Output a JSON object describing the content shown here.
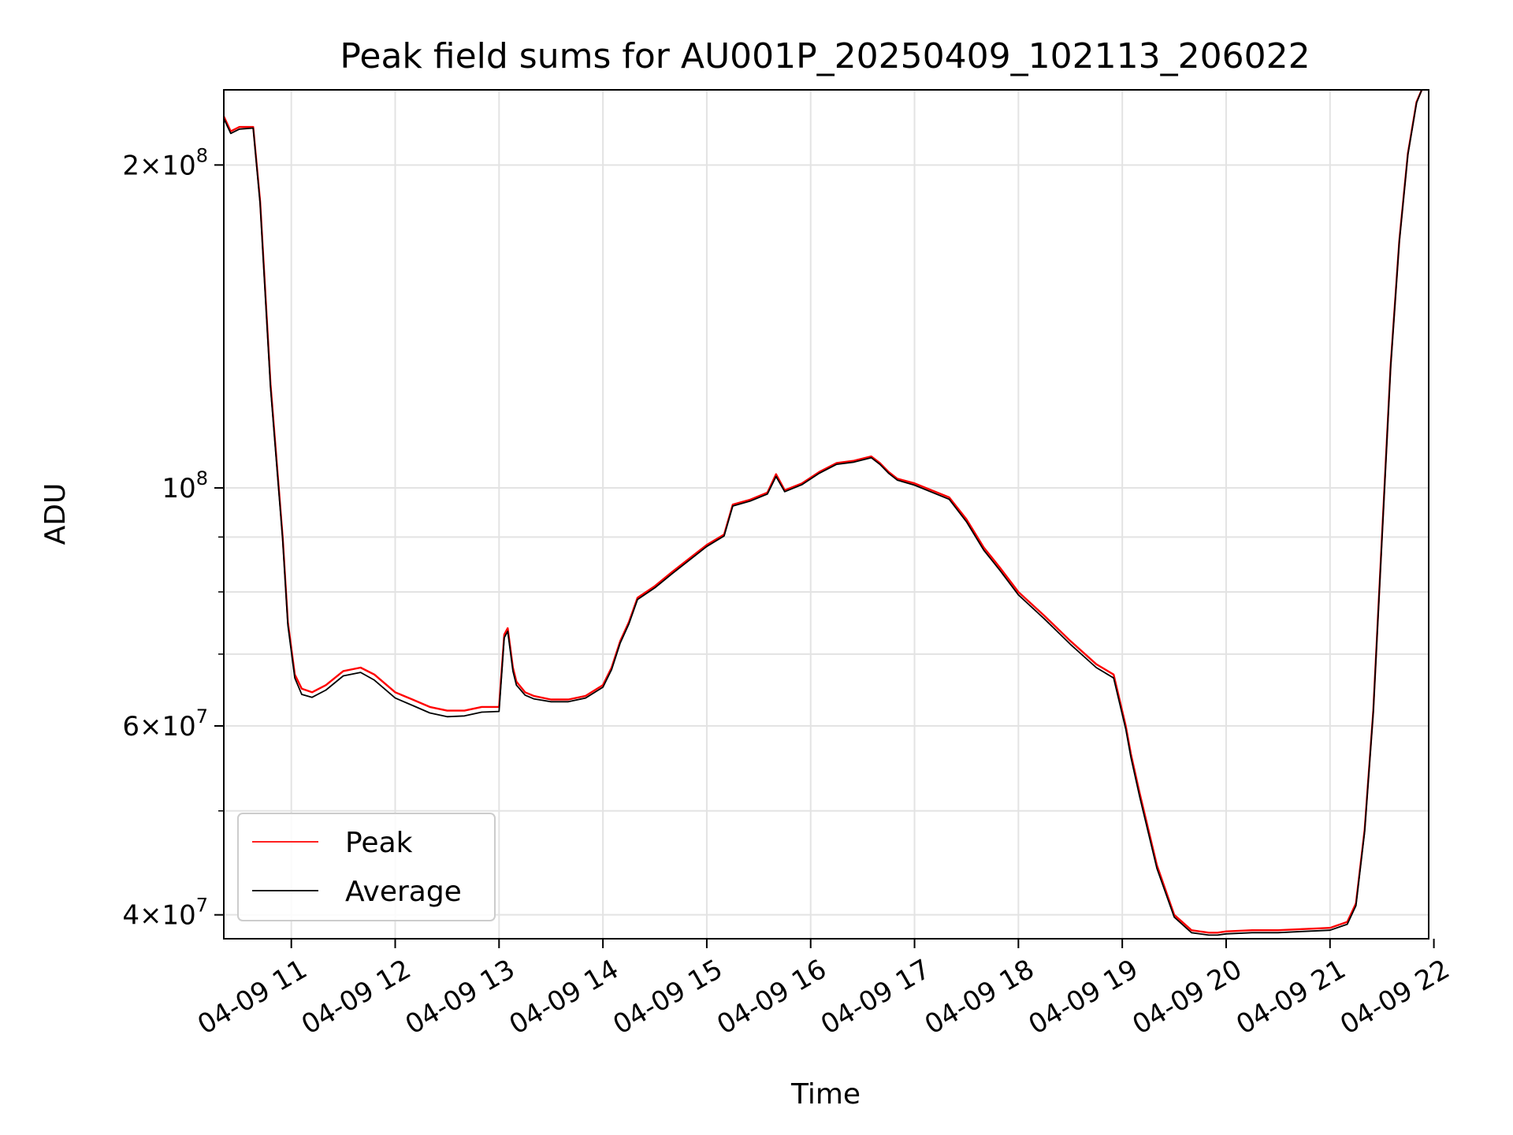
{
  "chart_data": {
    "type": "line",
    "title": "Peak field sums for AU001P_20250409_102113_206022",
    "xlabel": "Time",
    "ylabel": "ADU",
    "y_scale": "log",
    "grid": true,
    "legend_position": "lower-left",
    "xlim": [
      "04-09 10:21",
      "04-09 21:57"
    ],
    "ylim": [
      38000000,
      235000000
    ],
    "x_ticks": [
      "04-09 11",
      "04-09 12",
      "04-09 13",
      "04-09 14",
      "04-09 15",
      "04-09 16",
      "04-09 17",
      "04-09 18",
      "04-09 19",
      "04-09 20",
      "04-09 21",
      "04-09 22"
    ],
    "y_major_ticks": [
      {
        "value": 40000000,
        "mantissa": "4",
        "exponent": "7"
      },
      {
        "value": 60000000,
        "mantissa": "6",
        "exponent": "7"
      },
      {
        "value": 100000000,
        "mantissa": "",
        "exponent": "8"
      },
      {
        "value": 200000000,
        "mantissa": "2",
        "exponent": "8"
      }
    ],
    "y_minor_ticks": [
      50000000,
      70000000,
      80000000,
      90000000
    ],
    "series": [
      {
        "name": "Peak",
        "color": "#ff0000",
        "x": [
          "04-09 10:21",
          "04-09 10:25",
          "04-09 10:30",
          "04-09 10:38",
          "04-09 10:42",
          "04-09 10:48",
          "04-09 10:55",
          "04-09 10:58",
          "04-09 11:02",
          "04-09 11:06",
          "04-09 11:12",
          "04-09 11:20",
          "04-09 11:30",
          "04-09 11:40",
          "04-09 11:48",
          "04-09 12:00",
          "04-09 12:10",
          "04-09 12:20",
          "04-09 12:30",
          "04-09 12:40",
          "04-09 12:50",
          "04-09 13:00",
          "04-09 13:03",
          "04-09 13:05",
          "04-09 13:08",
          "04-09 13:10",
          "04-09 13:15",
          "04-09 13:20",
          "04-09 13:30",
          "04-09 13:40",
          "04-09 13:50",
          "04-09 14:00",
          "04-09 14:05",
          "04-09 14:10",
          "04-09 14:15",
          "04-09 14:20",
          "04-09 14:30",
          "04-09 14:40",
          "04-09 15:00",
          "04-09 15:10",
          "04-09 15:15",
          "04-09 15:25",
          "04-09 15:35",
          "04-09 15:40",
          "04-09 15:45",
          "04-09 15:55",
          "04-09 16:05",
          "04-09 16:15",
          "04-09 16:25",
          "04-09 16:35",
          "04-09 16:40",
          "04-09 16:45",
          "04-09 16:50",
          "04-09 17:00",
          "04-09 17:20",
          "04-09 17:30",
          "04-09 17:40",
          "04-09 17:45",
          "04-09 17:50",
          "04-09 18:00",
          "04-09 18:15",
          "04-09 18:30",
          "04-09 18:45",
          "04-09 18:55",
          "04-09 19:02",
          "04-09 19:05",
          "04-09 19:10",
          "04-09 19:20",
          "04-09 19:30",
          "04-09 19:40",
          "04-09 19:50",
          "04-09 19:55",
          "04-09 20:00",
          "04-09 20:15",
          "04-09 20:30",
          "04-09 20:45",
          "04-09 21:00",
          "04-09 21:10",
          "04-09 21:15",
          "04-09 21:20",
          "04-09 21:25",
          "04-09 21:30",
          "04-09 21:35",
          "04-09 21:40",
          "04-09 21:45",
          "04-09 21:50",
          "04-09 21:53"
        ],
        "y": [
          222000000,
          215000000,
          217000000,
          217000000,
          185000000,
          125000000,
          90000000,
          75000000,
          67000000,
          65000000,
          64500000,
          65500000,
          67500000,
          68000000,
          67000000,
          64500000,
          63500000,
          62500000,
          62000000,
          62000000,
          62500000,
          62500000,
          73000000,
          74000000,
          68000000,
          66000000,
          64500000,
          64000000,
          63500000,
          63500000,
          64000000,
          65500000,
          68000000,
          72000000,
          75000000,
          79000000,
          81000000,
          83500000,
          88500000,
          90500000,
          96500000,
          97500000,
          99000000,
          103000000,
          99500000,
          101000000,
          103500000,
          105500000,
          106000000,
          107000000,
          105500000,
          103500000,
          102000000,
          101000000,
          98000000,
          93500000,
          88000000,
          86000000,
          84000000,
          80000000,
          76000000,
          72000000,
          68500000,
          67000000,
          60000000,
          56500000,
          52000000,
          44500000,
          40000000,
          38700000,
          38500000,
          38500000,
          38600000,
          38700000,
          38700000,
          38800000,
          38900000,
          39400000,
          41000000,
          48000000,
          62000000,
          90000000,
          130000000,
          170000000,
          205000000,
          229000000,
          235000000
        ]
      },
      {
        "name": "Average",
        "color": "#000000",
        "x": [
          "04-09 10:21",
          "04-09 10:25",
          "04-09 10:30",
          "04-09 10:38",
          "04-09 10:42",
          "04-09 10:48",
          "04-09 10:55",
          "04-09 10:58",
          "04-09 11:02",
          "04-09 11:06",
          "04-09 11:12",
          "04-09 11:20",
          "04-09 11:30",
          "04-09 11:40",
          "04-09 11:48",
          "04-09 12:00",
          "04-09 12:10",
          "04-09 12:20",
          "04-09 12:30",
          "04-09 12:40",
          "04-09 12:50",
          "04-09 13:00",
          "04-09 13:03",
          "04-09 13:05",
          "04-09 13:08",
          "04-09 13:10",
          "04-09 13:15",
          "04-09 13:20",
          "04-09 13:30",
          "04-09 13:40",
          "04-09 13:50",
          "04-09 14:00",
          "04-09 14:05",
          "04-09 14:10",
          "04-09 14:15",
          "04-09 14:20",
          "04-09 14:30",
          "04-09 14:40",
          "04-09 15:00",
          "04-09 15:10",
          "04-09 15:15",
          "04-09 15:25",
          "04-09 15:35",
          "04-09 15:40",
          "04-09 15:45",
          "04-09 15:55",
          "04-09 16:05",
          "04-09 16:15",
          "04-09 16:25",
          "04-09 16:35",
          "04-09 16:40",
          "04-09 16:45",
          "04-09 16:50",
          "04-09 17:00",
          "04-09 17:20",
          "04-09 17:30",
          "04-09 17:40",
          "04-09 17:45",
          "04-09 17:50",
          "04-09 18:00",
          "04-09 18:15",
          "04-09 18:30",
          "04-09 18:45",
          "04-09 18:55",
          "04-09 19:02",
          "04-09 19:05",
          "04-09 19:10",
          "04-09 19:20",
          "04-09 19:30",
          "04-09 19:40",
          "04-09 19:50",
          "04-09 19:55",
          "04-09 20:00",
          "04-09 20:15",
          "04-09 20:30",
          "04-09 20:45",
          "04-09 21:00",
          "04-09 21:10",
          "04-09 21:15",
          "04-09 21:20",
          "04-09 21:25",
          "04-09 21:30",
          "04-09 21:35",
          "04-09 21:40",
          "04-09 21:45",
          "04-09 21:50",
          "04-09 21:53"
        ],
        "y": [
          221000000,
          214000000,
          216000000,
          216500000,
          184000000,
          124000000,
          89500000,
          74500000,
          66500000,
          64200000,
          63800000,
          64800000,
          66800000,
          67300000,
          66200000,
          63700000,
          62700000,
          61700000,
          61200000,
          61300000,
          61800000,
          61900000,
          72500000,
          73500000,
          67500000,
          65500000,
          64100000,
          63600000,
          63200000,
          63200000,
          63700000,
          65200000,
          67700000,
          71700000,
          74700000,
          78700000,
          80700000,
          83200000,
          88200000,
          90200000,
          96200000,
          97200000,
          98700000,
          102500000,
          99200000,
          100700000,
          103200000,
          105200000,
          105700000,
          106700000,
          105200000,
          103200000,
          101700000,
          100600000,
          97600000,
          93000000,
          87500000,
          85500000,
          83500000,
          79500000,
          75500000,
          71500000,
          68000000,
          66500000,
          59600000,
          56100000,
          51600000,
          44200000,
          39800000,
          38500000,
          38300000,
          38300000,
          38400000,
          38500000,
          38500000,
          38600000,
          38700000,
          39200000,
          40800000,
          47800000,
          61800000,
          89500000,
          129500000,
          169500000,
          204500000,
          228500000,
          235000000
        ]
      }
    ]
  }
}
